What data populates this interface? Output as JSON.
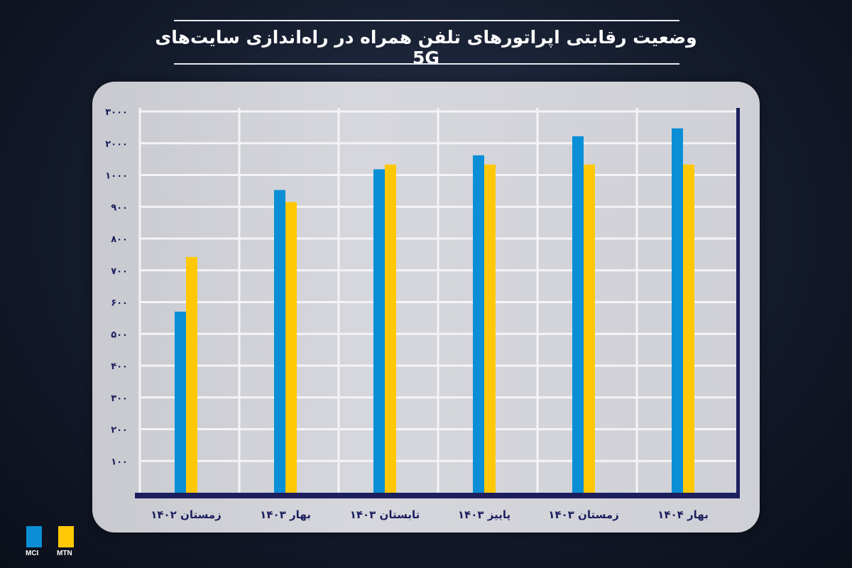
{
  "chart_data": {
    "type": "bar",
    "title": "وضعیت رقابتی اپراتورهای تلفن همراه در راه‌اندازی سایت‌های 5G",
    "categories": [
      "زمستان ۱۴۰۲",
      "بهار ۱۴۰۳",
      "تابستان ۱۴۰۳",
      "پاییز ۱۴۰۳",
      "زمستان ۱۴۰۳",
      "بهار ۱۴۰۴"
    ],
    "series": [
      {
        "name": "MCI",
        "color": "#0a8fd6",
        "values": [
          570,
          953,
          1180,
          1620,
          2220,
          2470
        ]
      },
      {
        "name": "MTN",
        "color": "#ffc807",
        "values": [
          742,
          915,
          1330,
          1330,
          1330,
          1330
        ]
      }
    ],
    "y_ticks": [
      0,
      100,
      200,
      300,
      400,
      500,
      600,
      700,
      800,
      900,
      1000,
      2000,
      3000
    ],
    "y_tick_labels": [
      "",
      "۱۰۰",
      "۲۰۰",
      "۳۰۰",
      "۴۰۰",
      "۵۰۰",
      "۶۰۰",
      "۷۰۰",
      "۸۰۰",
      "۹۰۰",
      "۱۰۰۰",
      "۲۰۰۰",
      "۳۰۰۰"
    ],
    "ylim": [
      0,
      3000
    ],
    "y_scale": "non-uniform (equal spacing per tick)",
    "grid": true,
    "legend_placement": "bottom-left",
    "axis_color": "#1c1f5e"
  }
}
